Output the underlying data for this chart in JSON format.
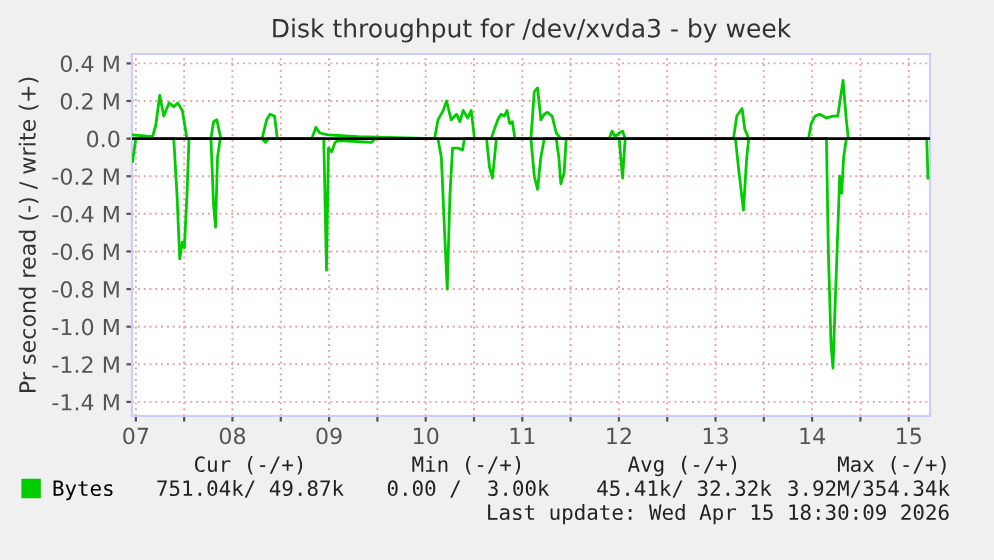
{
  "chart_data": {
    "type": "line",
    "title": "Disk throughput for /dev/xvda3 - by week",
    "ylabel": "Pr second read (-) / write (+)",
    "series": [
      {
        "name": "Bytes",
        "color": "#00cc00",
        "x": [
          6.966,
          7.172,
          7.206,
          7.247,
          7.289,
          7.344,
          7.392,
          7.433,
          7.481,
          7.529,
          7.777,
          7.804,
          7.838,
          7.88,
          8.306,
          8.354,
          8.388,
          8.436,
          8.464,
          8.821,
          8.863,
          8.904,
          8.993,
          9.302,
          10.093,
          10.127,
          10.182,
          10.216,
          10.264,
          10.32,
          10.354,
          10.388,
          10.436,
          10.471,
          10.505,
          10.677,
          10.746,
          10.78,
          10.814,
          10.842,
          10.869,
          10.897,
          10.924,
          11.089,
          11.124,
          11.158,
          11.192,
          11.227,
          11.261,
          11.309,
          11.351,
          11.399,
          11.9,
          11.928,
          11.962,
          12.003,
          12.038,
          12.065,
          13.186,
          13.22,
          13.275,
          13.303,
          13.344,
          13.963,
          13.99,
          14.031,
          14.079,
          14.148,
          14.216,
          14.265,
          14.306,
          14.32,
          14.354,
          14.375,
          15.186,
          15.199
        ],
        "values": [
          0.02,
          0.01,
          0.07,
          0.23,
          0.12,
          0.19,
          0.17,
          0.19,
          0.15,
          0,
          0,
          0.09,
          0.1,
          0,
          0,
          0.1,
          0.13,
          0.12,
          0,
          0,
          0.06,
          0.03,
          0.02,
          0.01,
          0,
          0.1,
          0.15,
          0.2,
          0.1,
          0.13,
          0.09,
          0.15,
          0.11,
          0.15,
          0,
          0,
          0.1,
          0.13,
          0.12,
          0.15,
          0.08,
          0.09,
          0,
          0,
          0.25,
          0.27,
          0.1,
          0.13,
          0.14,
          0.12,
          0.03,
          0,
          0,
          0.04,
          0.01,
          0.03,
          0.04,
          0,
          0,
          0.12,
          0.16,
          0.05,
          0,
          0,
          0.08,
          0.12,
          0.13,
          0.11,
          0.12,
          0.12,
          0.26,
          0.31,
          0.1,
          0,
          0,
          0
        ]
      },
      {
        "color": "#00cc00",
        "x": [
          6.966,
          7.0,
          7.392,
          7.426,
          7.454,
          7.481,
          7.502,
          7.529,
          7.55,
          7.777,
          7.804,
          7.825,
          7.845,
          7.873,
          8.306,
          8.34,
          8.375,
          8.945,
          8.973,
          8.993,
          9.027,
          9.062,
          9.096,
          9.44,
          9.474,
          10.127,
          10.162,
          10.196,
          10.223,
          10.251,
          10.278,
          10.333,
          10.381,
          10.402,
          10.63,
          10.66,
          10.691,
          10.732,
          11.089,
          11.124,
          11.158,
          11.192,
          11.227,
          11.351,
          11.378,
          11.399,
          11.433,
          11.454,
          12.003,
          12.038,
          12.065,
          13.206,
          13.241,
          13.289,
          13.323,
          13.344,
          14.148,
          14.168,
          14.196,
          14.216,
          14.237,
          14.258,
          14.285,
          14.306,
          14.326,
          14.354,
          15.186,
          15.199
        ],
        "values": [
          -0.12,
          0,
          0,
          -0.3,
          -0.64,
          -0.55,
          -0.58,
          -0.3,
          0,
          0,
          -0.35,
          -0.47,
          -0.1,
          0,
          0,
          -0.02,
          0,
          0,
          -0.7,
          -0.05,
          -0.07,
          -0.02,
          -0.01,
          -0.02,
          0,
          0,
          -0.1,
          -0.5,
          -0.8,
          -0.3,
          -0.05,
          -0.05,
          -0.06,
          0,
          0,
          -0.15,
          -0.21,
          0,
          0,
          -0.2,
          -0.27,
          -0.1,
          0,
          0,
          -0.1,
          -0.24,
          -0.18,
          0,
          0,
          -0.21,
          0,
          0,
          -0.17,
          -0.38,
          -0.1,
          0,
          0,
          -0.6,
          -1.1,
          -1.22,
          -0.9,
          -0.6,
          -0.2,
          -0.29,
          -0.1,
          0,
          0,
          -0.21
        ]
      }
    ],
    "xlim": [
      6.96,
      15.22
    ],
    "xticks": [
      {
        "value": 7,
        "label": "07"
      },
      {
        "value": 7.5,
        "label": null
      },
      {
        "value": 8,
        "label": "08"
      },
      {
        "value": 8.5,
        "label": null
      },
      {
        "value": 9,
        "label": "09"
      },
      {
        "value": 9.5,
        "label": null
      },
      {
        "value": 10,
        "label": "10"
      },
      {
        "value": 10.5,
        "label": null
      },
      {
        "value": 11,
        "label": "11"
      },
      {
        "value": 11.5,
        "label": null
      },
      {
        "value": 12,
        "label": "12"
      },
      {
        "value": 12.5,
        "label": null
      },
      {
        "value": 13,
        "label": "13"
      },
      {
        "value": 13.5,
        "label": null
      },
      {
        "value": 14,
        "label": "14"
      },
      {
        "value": 14.5,
        "label": null
      },
      {
        "value": 15,
        "label": "15"
      }
    ],
    "ylim": [
      -1.475,
      0.45
    ],
    "yticks": [
      {
        "value": -1.4,
        "label": "-1.4 M"
      },
      {
        "value": -1.2,
        "label": "-1.2 M"
      },
      {
        "value": -1.0,
        "label": "-1.0 M"
      },
      {
        "value": -0.8,
        "label": "-0.8 M"
      },
      {
        "value": -0.6,
        "label": "-0.6 M"
      },
      {
        "value": -0.4,
        "label": "-0.4 M"
      },
      {
        "value": -0.2,
        "label": "-0.2 M"
      },
      {
        "value": 0,
        "label": "0.0"
      },
      {
        "value": 0.2,
        "label": "0.2 M"
      },
      {
        "value": 0.4,
        "label": "0.4 M"
      }
    ],
    "ref_lines": [
      {
        "axis": "y",
        "value": 0,
        "color": "#000000"
      }
    ],
    "grid": true,
    "legend": "bottom left",
    "annotations": [
      "Cur (-/+)",
      "Min (-/+)",
      "Avg (-/+)",
      "Max (-/+)",
      "751.04k/ 49.87k",
      "0.00 /  3.00k",
      "45.41k/ 32.32k",
      "3.92M/354.34k",
      "Last update: Wed Apr 15 18:30:09 2026"
    ]
  }
}
